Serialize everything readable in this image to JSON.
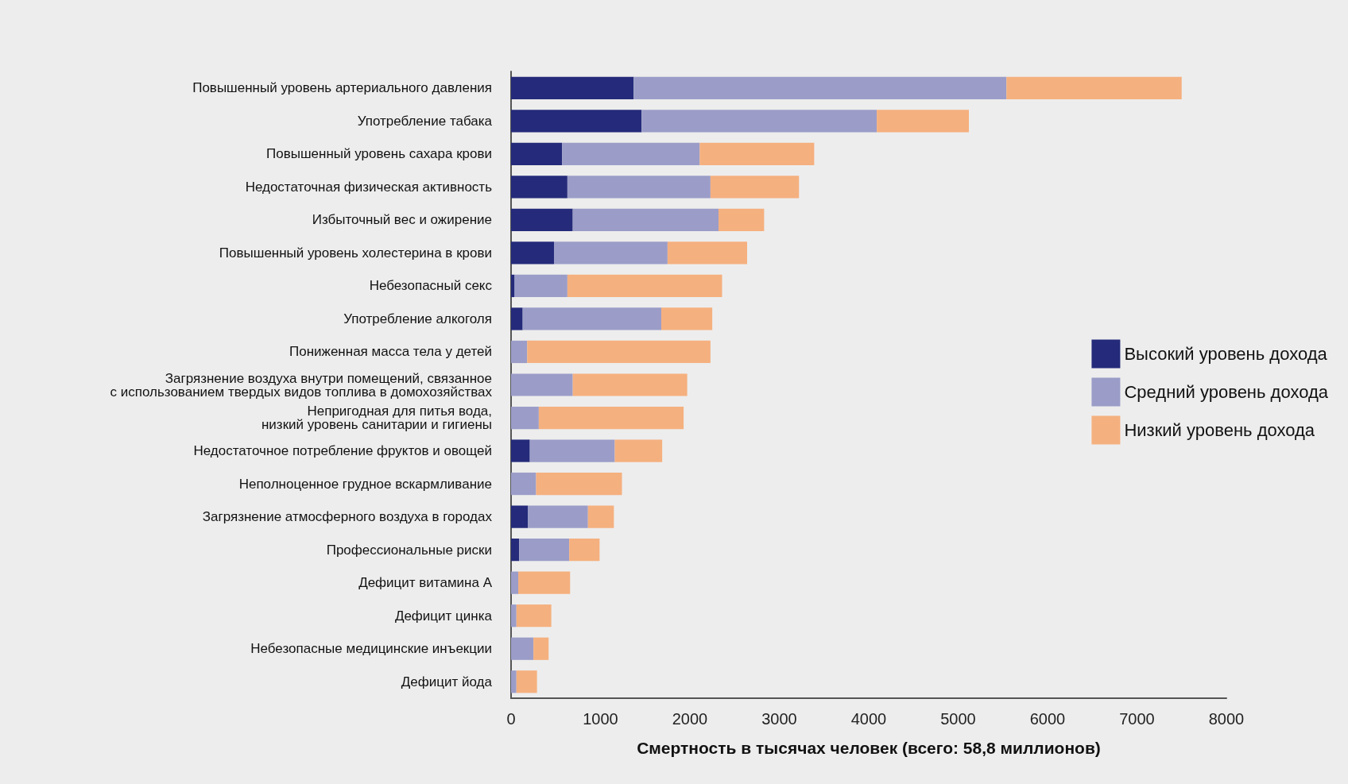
{
  "chart_data": {
    "type": "bar",
    "orientation": "horizontal",
    "stacked": true,
    "xlabel": "Смертность в тысячах человек (всего: 58,8 миллионов)",
    "categories": [
      "Повышенный уровень артериального давления",
      "Употребление табака",
      "Повышенный уровень сахара крови",
      "Недостаточная физическая активность",
      "Избыточный вес и ожирение",
      "Повышенный уровень холестерина в крови",
      "Небезопасный секс",
      "Употребление алкоголя",
      "Пониженная масса тела у детей",
      "Загрязнение воздуха внутри помещений, связанное\nс использованием твердых видов топлива в домохозяйствах",
      "Непригодная для питья вода,\nнизкий уровень санитарии и гигиены",
      "Недостаточное потребление фруктов и овощей",
      "Неполноценное грудное вскармливание",
      "Загрязнение атмосферного воздуха в городах",
      "Профессиональные риски",
      "Дефицит витамина А",
      "Дефицит цинка",
      "Небезопасные медицинские инъекции",
      "Дефицит йода"
    ],
    "series": [
      {
        "name": "Высокий уровень дохода",
        "color": "#252b7a",
        "values": [
          1370,
          1460,
          570,
          630,
          690,
          480,
          40,
          130,
          0,
          0,
          0,
          210,
          0,
          190,
          90,
          0,
          0,
          0,
          0
        ]
      },
      {
        "name": "Средний уровень дохода",
        "color": "#9b9dc8",
        "values": [
          4170,
          2630,
          1540,
          1600,
          1630,
          1270,
          590,
          1550,
          180,
          690,
          310,
          950,
          280,
          670,
          560,
          80,
          60,
          250,
          60
        ]
      },
      {
        "name": "Низкий уровень дохода",
        "color": "#f5b07f",
        "values": [
          1960,
          1030,
          1280,
          990,
          510,
          890,
          1730,
          570,
          2050,
          1280,
          1620,
          530,
          960,
          290,
          340,
          580,
          390,
          170,
          230
        ]
      }
    ],
    "xlim": [
      0,
      8000
    ],
    "xticks": [
      0,
      1000,
      2000,
      3000,
      4000,
      5000,
      6000,
      7000,
      8000
    ],
    "grid": false,
    "legend": "right"
  }
}
